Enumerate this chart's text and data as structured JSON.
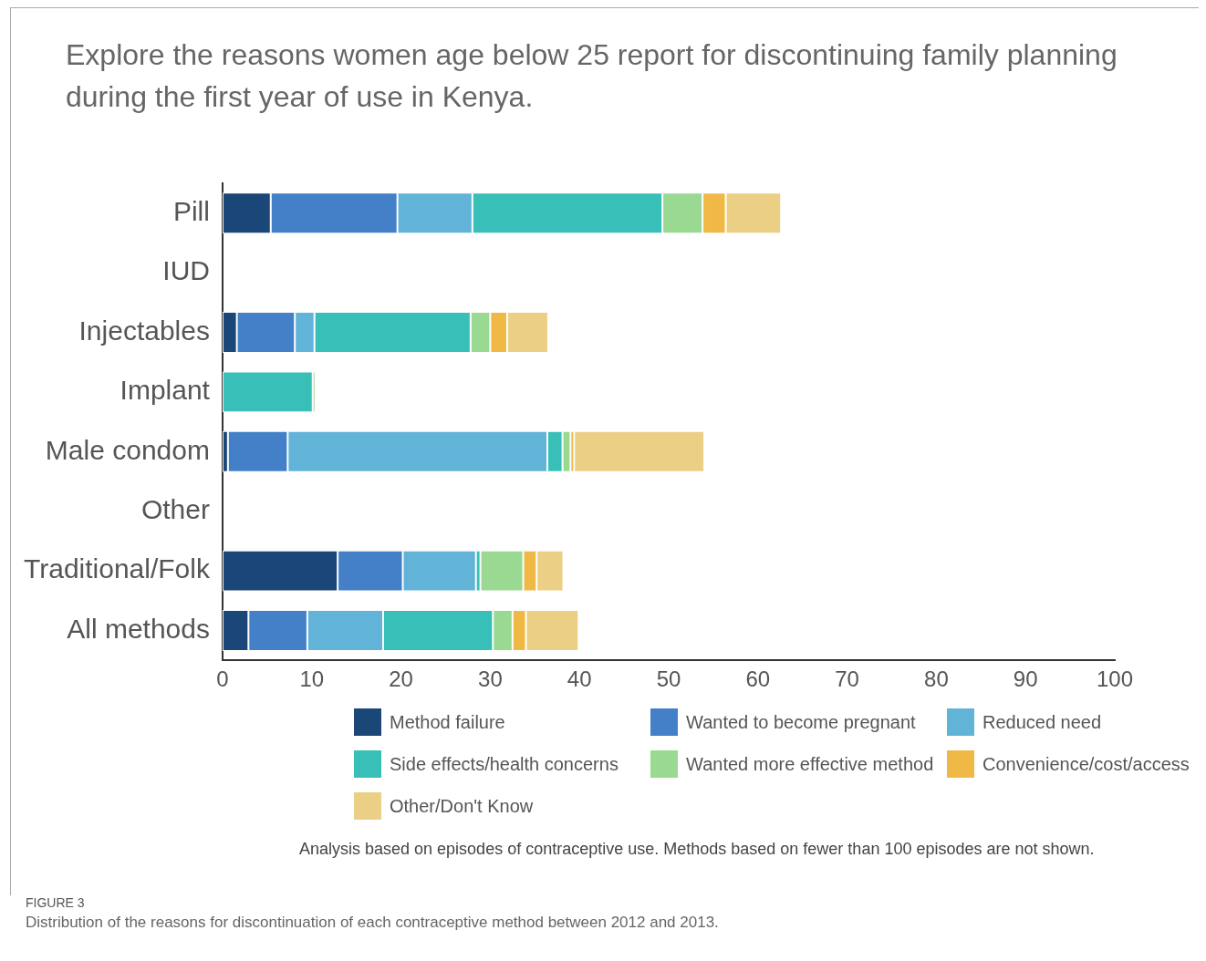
{
  "chart_data": {
    "type": "bar",
    "orientation": "horizontal",
    "stacked": true,
    "title": "Explore the reasons women age below 25 report for discontinuing family planning during the first year of use in Kenya.",
    "categories": [
      "Pill",
      "IUD",
      "Injectables",
      "Implant",
      "Male condom",
      "Other",
      "Traditional/Folk",
      "All methods"
    ],
    "series": [
      {
        "name": "Method failure",
        "color": "#1a4778",
        "values": [
          5.4,
          null,
          1.6,
          null,
          0.6,
          null,
          12.9,
          2.9
        ]
      },
      {
        "name": "Wanted to become pregnant",
        "color": "#4380c8",
        "values": [
          14.2,
          null,
          6.5,
          null,
          6.7,
          null,
          7.3,
          6.6
        ]
      },
      {
        "name": "Reduced need",
        "color": "#62b3d8",
        "values": [
          8.4,
          null,
          2.2,
          null,
          29.1,
          null,
          8.2,
          8.5
        ]
      },
      {
        "name": "Side effects/health concerns",
        "color": "#38c0b8",
        "values": [
          21.3,
          null,
          17.5,
          10.1,
          1.7,
          null,
          0.5,
          12.3
        ]
      },
      {
        "name": "Wanted more effective method",
        "color": "#9ad991",
        "values": [
          4.5,
          null,
          2.2,
          0.3,
          0.9,
          null,
          4.8,
          2.2
        ]
      },
      {
        "name": "Convenience/cost/access",
        "color": "#f0b945",
        "values": [
          2.6,
          null,
          1.9,
          null,
          0.4,
          null,
          1.5,
          1.5
        ]
      },
      {
        "name": "Other/Don't Know",
        "color": "#ebcf85",
        "values": [
          6.2,
          null,
          4.6,
          null,
          14.6,
          null,
          3.0,
          5.9
        ]
      }
    ],
    "xlim": [
      0,
      100
    ],
    "xticks": [
      0,
      10,
      20,
      30,
      40,
      50,
      60,
      70,
      80,
      90,
      100
    ],
    "grid": false,
    "legend": "bottom",
    "annotations": [
      "Analysis based on episodes of contraceptive use. Methods based on fewer than 100 episodes are not shown.",
      "FIGURE 3",
      "Distribution of the reasons for discontinuation of each contraceptive method between 2012 and 2013."
    ]
  }
}
